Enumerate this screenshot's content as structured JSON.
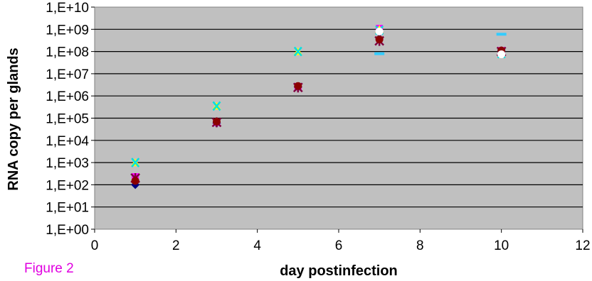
{
  "figure_caption": "Figure 2",
  "chart_data": {
    "type": "scatter",
    "xlabel": "day postinfection",
    "ylabel": "RNA copy per glands",
    "xlim": [
      0,
      12
    ],
    "ylim": [
      0,
      10
    ],
    "y_scale": "log10",
    "x_ticks": [
      0,
      2,
      4,
      6,
      8,
      10,
      12
    ],
    "y_tick_labels": [
      "1,E+00",
      "1,E+01",
      "1,E+02",
      "1,E+03",
      "1,E+04",
      "1,E+05",
      "1,E+06",
      "1,E+07",
      "1,E+08",
      "1,E+09",
      "1,E+10"
    ],
    "grid": "horizontal",
    "plot_background": "#c0c0c0",
    "series": [
      {
        "marker": "diamond",
        "color": "#000080",
        "points": [
          [
            1,
            100
          ],
          [
            3,
            60000
          ],
          [
            5,
            2500000
          ],
          [
            7,
            700000000
          ],
          [
            10,
            100000000
          ]
        ]
      },
      {
        "marker": "square",
        "color": "#ff00ff",
        "points": [
          [
            1,
            230
          ],
          [
            3,
            65000
          ],
          [
            5,
            2600000
          ],
          [
            7,
            1100000000
          ],
          [
            10,
            110000000
          ]
        ]
      },
      {
        "marker": "triangle",
        "color": "#ffff00",
        "points": [
          [
            1,
            1000
          ],
          [
            3,
            350000
          ],
          [
            5,
            100000000
          ],
          [
            7,
            1000000000
          ],
          [
            10,
            90000000
          ]
        ]
      },
      {
        "marker": "x",
        "color": "#00e0e0",
        "points": [
          [
            1,
            1000
          ],
          [
            3,
            350000
          ],
          [
            5,
            100000000
          ],
          [
            7,
            900000000
          ],
          [
            10,
            80000000
          ]
        ]
      },
      {
        "marker": "star",
        "color": "#800040",
        "points": [
          [
            1,
            200
          ],
          [
            3,
            65000
          ],
          [
            5,
            2400000
          ],
          [
            7,
            300000000
          ],
          [
            10,
            100000000
          ]
        ]
      },
      {
        "marker": "circle",
        "color": "#8b0000",
        "points": [
          [
            1,
            150
          ],
          [
            3,
            70000
          ],
          [
            5,
            2800000
          ],
          [
            7,
            350000000
          ],
          [
            10,
            110000000
          ]
        ]
      },
      {
        "marker": "dash",
        "color": "#33ccff",
        "points": [
          [
            7,
            80000000
          ],
          [
            10,
            600000000
          ]
        ]
      },
      {
        "marker": "circle",
        "color": "#ffffff",
        "points": [
          [
            7,
            800000000
          ],
          [
            10,
            75000000
          ]
        ]
      }
    ]
  }
}
